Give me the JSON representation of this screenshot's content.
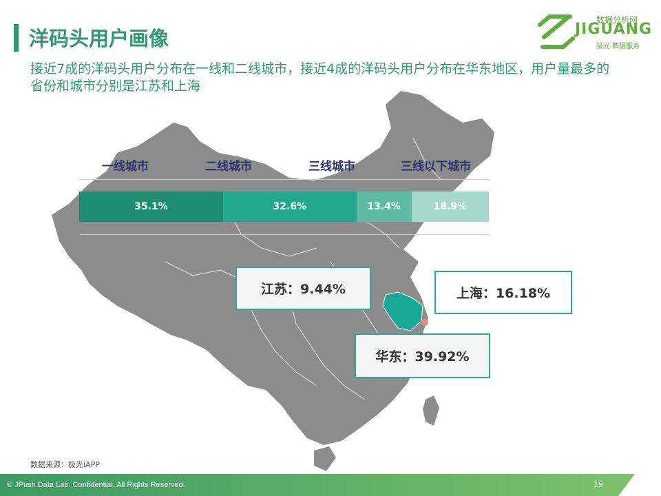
{
  "header": {
    "title": "洋码头用户画像",
    "subtitle": "接近7成的洋码头用户分布在一线和二线城市，接近4成的洋码头用户分布在华东地区，用户量最多的省份和城市分别是江苏和上海"
  },
  "logo": {
    "top_text": "数据分析网",
    "word": "JIGUANG",
    "sub": "极光 数据服务"
  },
  "chart_data": {
    "type": "bar",
    "stacked": true,
    "orientation": "horizontal",
    "categories": [
      "一线城市",
      "二线城市",
      "三线城市",
      "三线以下城市"
    ],
    "values": [
      35.1,
      32.6,
      13.4,
      18.9
    ],
    "value_labels": [
      "35.1%",
      "32.6%",
      "13.4%",
      "18.9%"
    ],
    "colors": [
      "#1a8f74",
      "#20a98a",
      "#5dbba3",
      "#a6d9cb"
    ]
  },
  "callouts": {
    "jiangsu": "江苏：9.44%",
    "shanghai": "上海：16.18%",
    "east_china": "华东：39.92%"
  },
  "source": "数据来源：极光iAPP",
  "footer": {
    "copyright": "© JPush Data Lab. Confidential. All Rights Reserved.",
    "page": "19"
  }
}
